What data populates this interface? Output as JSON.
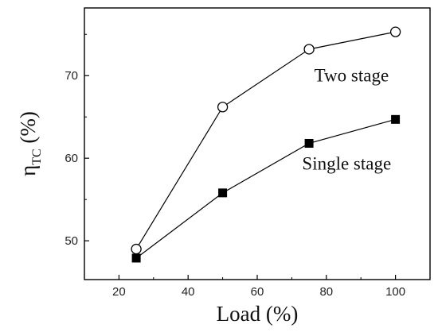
{
  "chart_data": {
    "type": "line",
    "xlabel": "Load (%)",
    "ylabel_main": "η",
    "ylabel_sub": "TC",
    "ylabel_unit": " (%)",
    "xlim": [
      10,
      110
    ],
    "ylim": [
      45.3,
      78.2
    ],
    "xticks": [
      20,
      40,
      60,
      80,
      100
    ],
    "yticks": [
      50,
      60,
      70
    ],
    "minor_x": [
      30,
      50,
      70,
      90
    ],
    "minor_y": [
      55,
      65,
      75
    ],
    "series": [
      {
        "name": "Two stage",
        "marker": "open-circle",
        "x": [
          25,
          50,
          75,
          100
        ],
        "y": [
          49.0,
          66.2,
          73.2,
          75.3
        ]
      },
      {
        "name": "Single stage",
        "marker": "filled-square",
        "x": [
          25,
          50,
          75,
          100
        ],
        "y": [
          47.9,
          55.8,
          61.8,
          64.7
        ]
      }
    ],
    "annotations": [
      {
        "text": "Two stage",
        "x": 76.5,
        "y": 69.3
      },
      {
        "text": "Single stage",
        "x": 73,
        "y": 58.6
      }
    ],
    "grid": false,
    "legend": "none",
    "colors": {
      "line": "#000000",
      "axis": "#000000"
    }
  }
}
